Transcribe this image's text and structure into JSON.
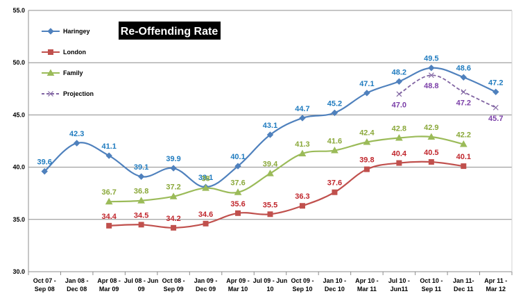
{
  "chart_data": {
    "type": "line",
    "title": "Re-Offending Rate",
    "ylim": [
      30,
      55
    ],
    "yticks": [
      "30.0",
      "35.0",
      "40.0",
      "45.0",
      "50.0",
      "55.0"
    ],
    "ytick_values": [
      30,
      35,
      40,
      45,
      50,
      55
    ],
    "grid": true,
    "legend_position": "top-left",
    "categories": [
      [
        "Oct 07 -",
        "Sep 08"
      ],
      [
        "Jan 08 -",
        "Dec 08"
      ],
      [
        "Apr 08 -",
        "Mar 09"
      ],
      [
        "Jul 08 - Jun",
        "09"
      ],
      [
        "Oct 08 -",
        "Sep 09"
      ],
      [
        "Jan 09 -",
        "Dec 09"
      ],
      [
        "Apr 09 -",
        "Mar 10"
      ],
      [
        "Jul 09 - Jun",
        "10"
      ],
      [
        "Oct 09 -",
        "Sep 10"
      ],
      [
        "Jan 10 -",
        "Dec 10"
      ],
      [
        "Apr 10 -",
        "Mar 11"
      ],
      [
        "Jul 10 -",
        "Jun11"
      ],
      [
        "Oct 10 -",
        "Sep 11"
      ],
      [
        "Jan 11-",
        "Dec 11"
      ],
      [
        "Apr 11 -",
        "Mar 12"
      ]
    ],
    "series": [
      {
        "name": "Haringey",
        "color": "#4f81bd",
        "label_color": "#1f7bbf",
        "marker": "diamond",
        "dashed": false,
        "values": [
          39.6,
          42.3,
          41.1,
          39.1,
          39.9,
          38.1,
          40.1,
          43.1,
          44.7,
          45.2,
          47.1,
          48.2,
          49.5,
          48.6,
          47.2
        ],
        "labels": [
          "39.6",
          "42.3",
          "41.1",
          "39.1",
          "39.9",
          "38.1",
          "40.1",
          "43.1",
          "44.7",
          "45.2",
          "47.1",
          "48.2",
          "49.5",
          "48.6",
          "47.2"
        ],
        "label_pos": "above"
      },
      {
        "name": "London",
        "color": "#c0504d",
        "label_color": "#c0262c",
        "marker": "square",
        "dashed": false,
        "values": [
          null,
          null,
          34.4,
          34.5,
          34.2,
          34.6,
          35.6,
          35.5,
          36.3,
          37.6,
          39.8,
          40.4,
          40.5,
          40.1,
          null
        ],
        "labels": [
          null,
          null,
          "34.4",
          "34.5",
          "34.2",
          "34.6",
          "35.6",
          "35.5",
          "36.3",
          "37.6",
          "39.8",
          "40.4",
          "40.5",
          "40.1",
          null
        ],
        "label_pos": "above"
      },
      {
        "name": "Family",
        "color": "#9bbb59",
        "label_color": "#8aa83a",
        "marker": "triangle",
        "dashed": false,
        "values": [
          null,
          null,
          36.7,
          36.8,
          37.2,
          38.0,
          37.6,
          39.4,
          41.3,
          41.6,
          42.4,
          42.8,
          42.9,
          42.2,
          null
        ],
        "labels": [
          null,
          null,
          "36.7",
          "36.8",
          "37.2",
          "38",
          "37.6",
          "39.4",
          "41.3",
          "41.6",
          "42.4",
          "42.8",
          "42.9",
          "42.2",
          null
        ],
        "label_pos": "above"
      },
      {
        "name": "Projection",
        "color": "#8064a2",
        "label_color": "#7b3fa8",
        "marker": "x",
        "dashed": true,
        "values": [
          null,
          null,
          null,
          null,
          null,
          null,
          null,
          null,
          null,
          null,
          null,
          47.0,
          48.8,
          47.2,
          45.7
        ],
        "labels": [
          null,
          null,
          null,
          null,
          null,
          null,
          null,
          null,
          null,
          null,
          null,
          "47.0",
          "48.8",
          "47.2",
          "45.7"
        ],
        "label_pos": "below"
      }
    ]
  }
}
